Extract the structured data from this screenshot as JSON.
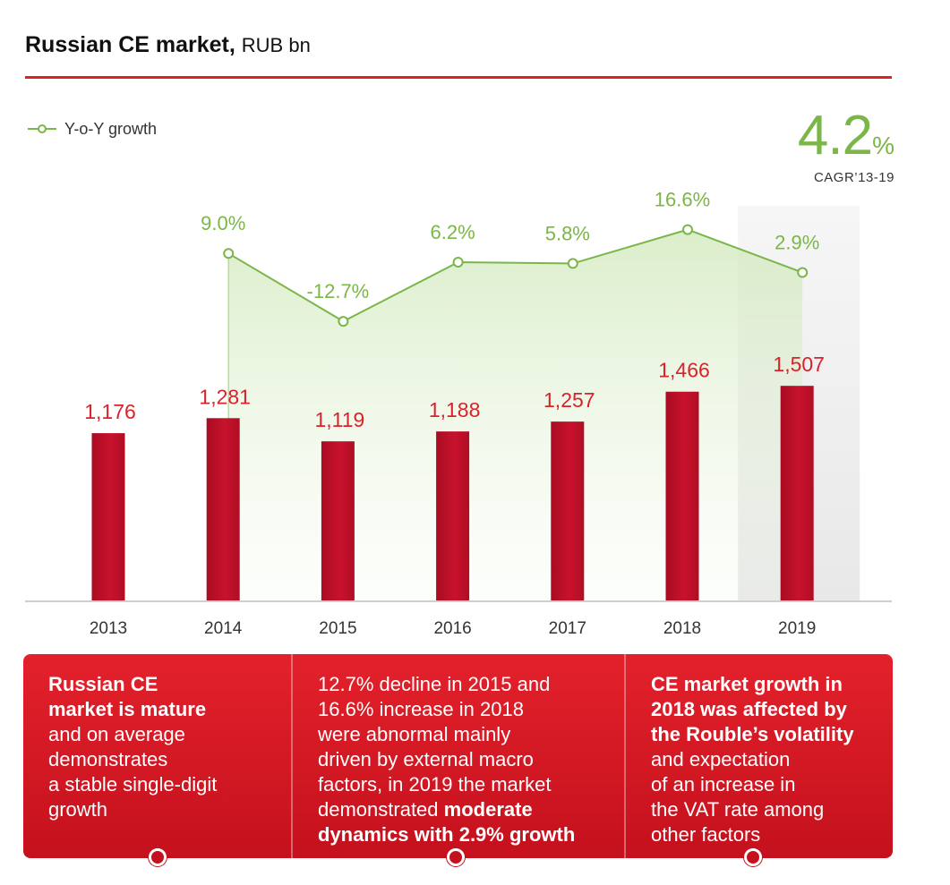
{
  "header": {
    "title_main": "Russian CE market,",
    "title_unit": "RUB bn"
  },
  "legend": {
    "label": "Y-o-Y growth"
  },
  "cagr": {
    "value": "4.2",
    "unit": "%",
    "label": "CAGR’13-19"
  },
  "chart_data": {
    "type": "bar",
    "categories": [
      "2013",
      "2014",
      "2015",
      "2016",
      "2017",
      "2018",
      "2019"
    ],
    "values": [
      1176,
      1281,
      1119,
      1188,
      1257,
      1466,
      1507
    ],
    "value_labels": [
      "1,176",
      "1,281",
      "1,119",
      "1,188",
      "1,257",
      "1,466",
      "1,507"
    ],
    "growth": [
      null,
      9.0,
      -12.7,
      6.2,
      5.8,
      16.6,
      2.9
    ],
    "growth_labels": [
      "",
      "9.0%",
      "-12.7%",
      "6.2%",
      "5.8%",
      "16.6%",
      "2.9%"
    ],
    "highlight_category": "2019",
    "ylim": [
      0,
      1700
    ],
    "growth_ylim": [
      -20,
      25
    ],
    "legend_position": "top-left",
    "grid": false,
    "colors": {
      "bar": "#c0102a",
      "bar_label": "#d9222a",
      "line": "#7ab648",
      "highlight": "#efefef"
    }
  },
  "boxes": [
    {
      "parts": [
        {
          "text": "Russian CE",
          "bold": true,
          "br": true
        },
        {
          "text": "market is mature",
          "bold": true,
          "br": true
        },
        {
          "text": "and on average",
          "bold": false,
          "br": true
        },
        {
          "text": "demonstrates",
          "bold": false,
          "br": true
        },
        {
          "text": "a stable single-digit",
          "bold": false,
          "br": true
        },
        {
          "text": "growth",
          "bold": false,
          "br": false
        }
      ]
    },
    {
      "parts": [
        {
          "text": "12.7% decline in 2015 and",
          "bold": false,
          "br": true
        },
        {
          "text": "16.6% increase in 2018",
          "bold": false,
          "br": true
        },
        {
          "text": "were abnormal mainly",
          "bold": false,
          "br": true
        },
        {
          "text": "driven by external macro",
          "bold": false,
          "br": true
        },
        {
          "text": "factors, in 2019 the market",
          "bold": false,
          "br": true
        },
        {
          "text": "demonstrated ",
          "bold": false,
          "br": false
        },
        {
          "text": "moderate",
          "bold": true,
          "br": true
        },
        {
          "text": "dynamics with 2.9% growth",
          "bold": true,
          "br": false
        }
      ]
    },
    {
      "parts": [
        {
          "text": "CE market growth in",
          "bold": true,
          "br": true
        },
        {
          "text": "2018 was affected by",
          "bold": true,
          "br": true
        },
        {
          "text": "the Rouble’s volatility",
          "bold": true,
          "br": true
        },
        {
          "text": "and expectation",
          "bold": false,
          "br": true
        },
        {
          "text": "of an increase in",
          "bold": false,
          "br": true
        },
        {
          "text": "the VAT rate among",
          "bold": false,
          "br": true
        },
        {
          "text": "other factors",
          "bold": false,
          "br": false
        }
      ]
    }
  ]
}
